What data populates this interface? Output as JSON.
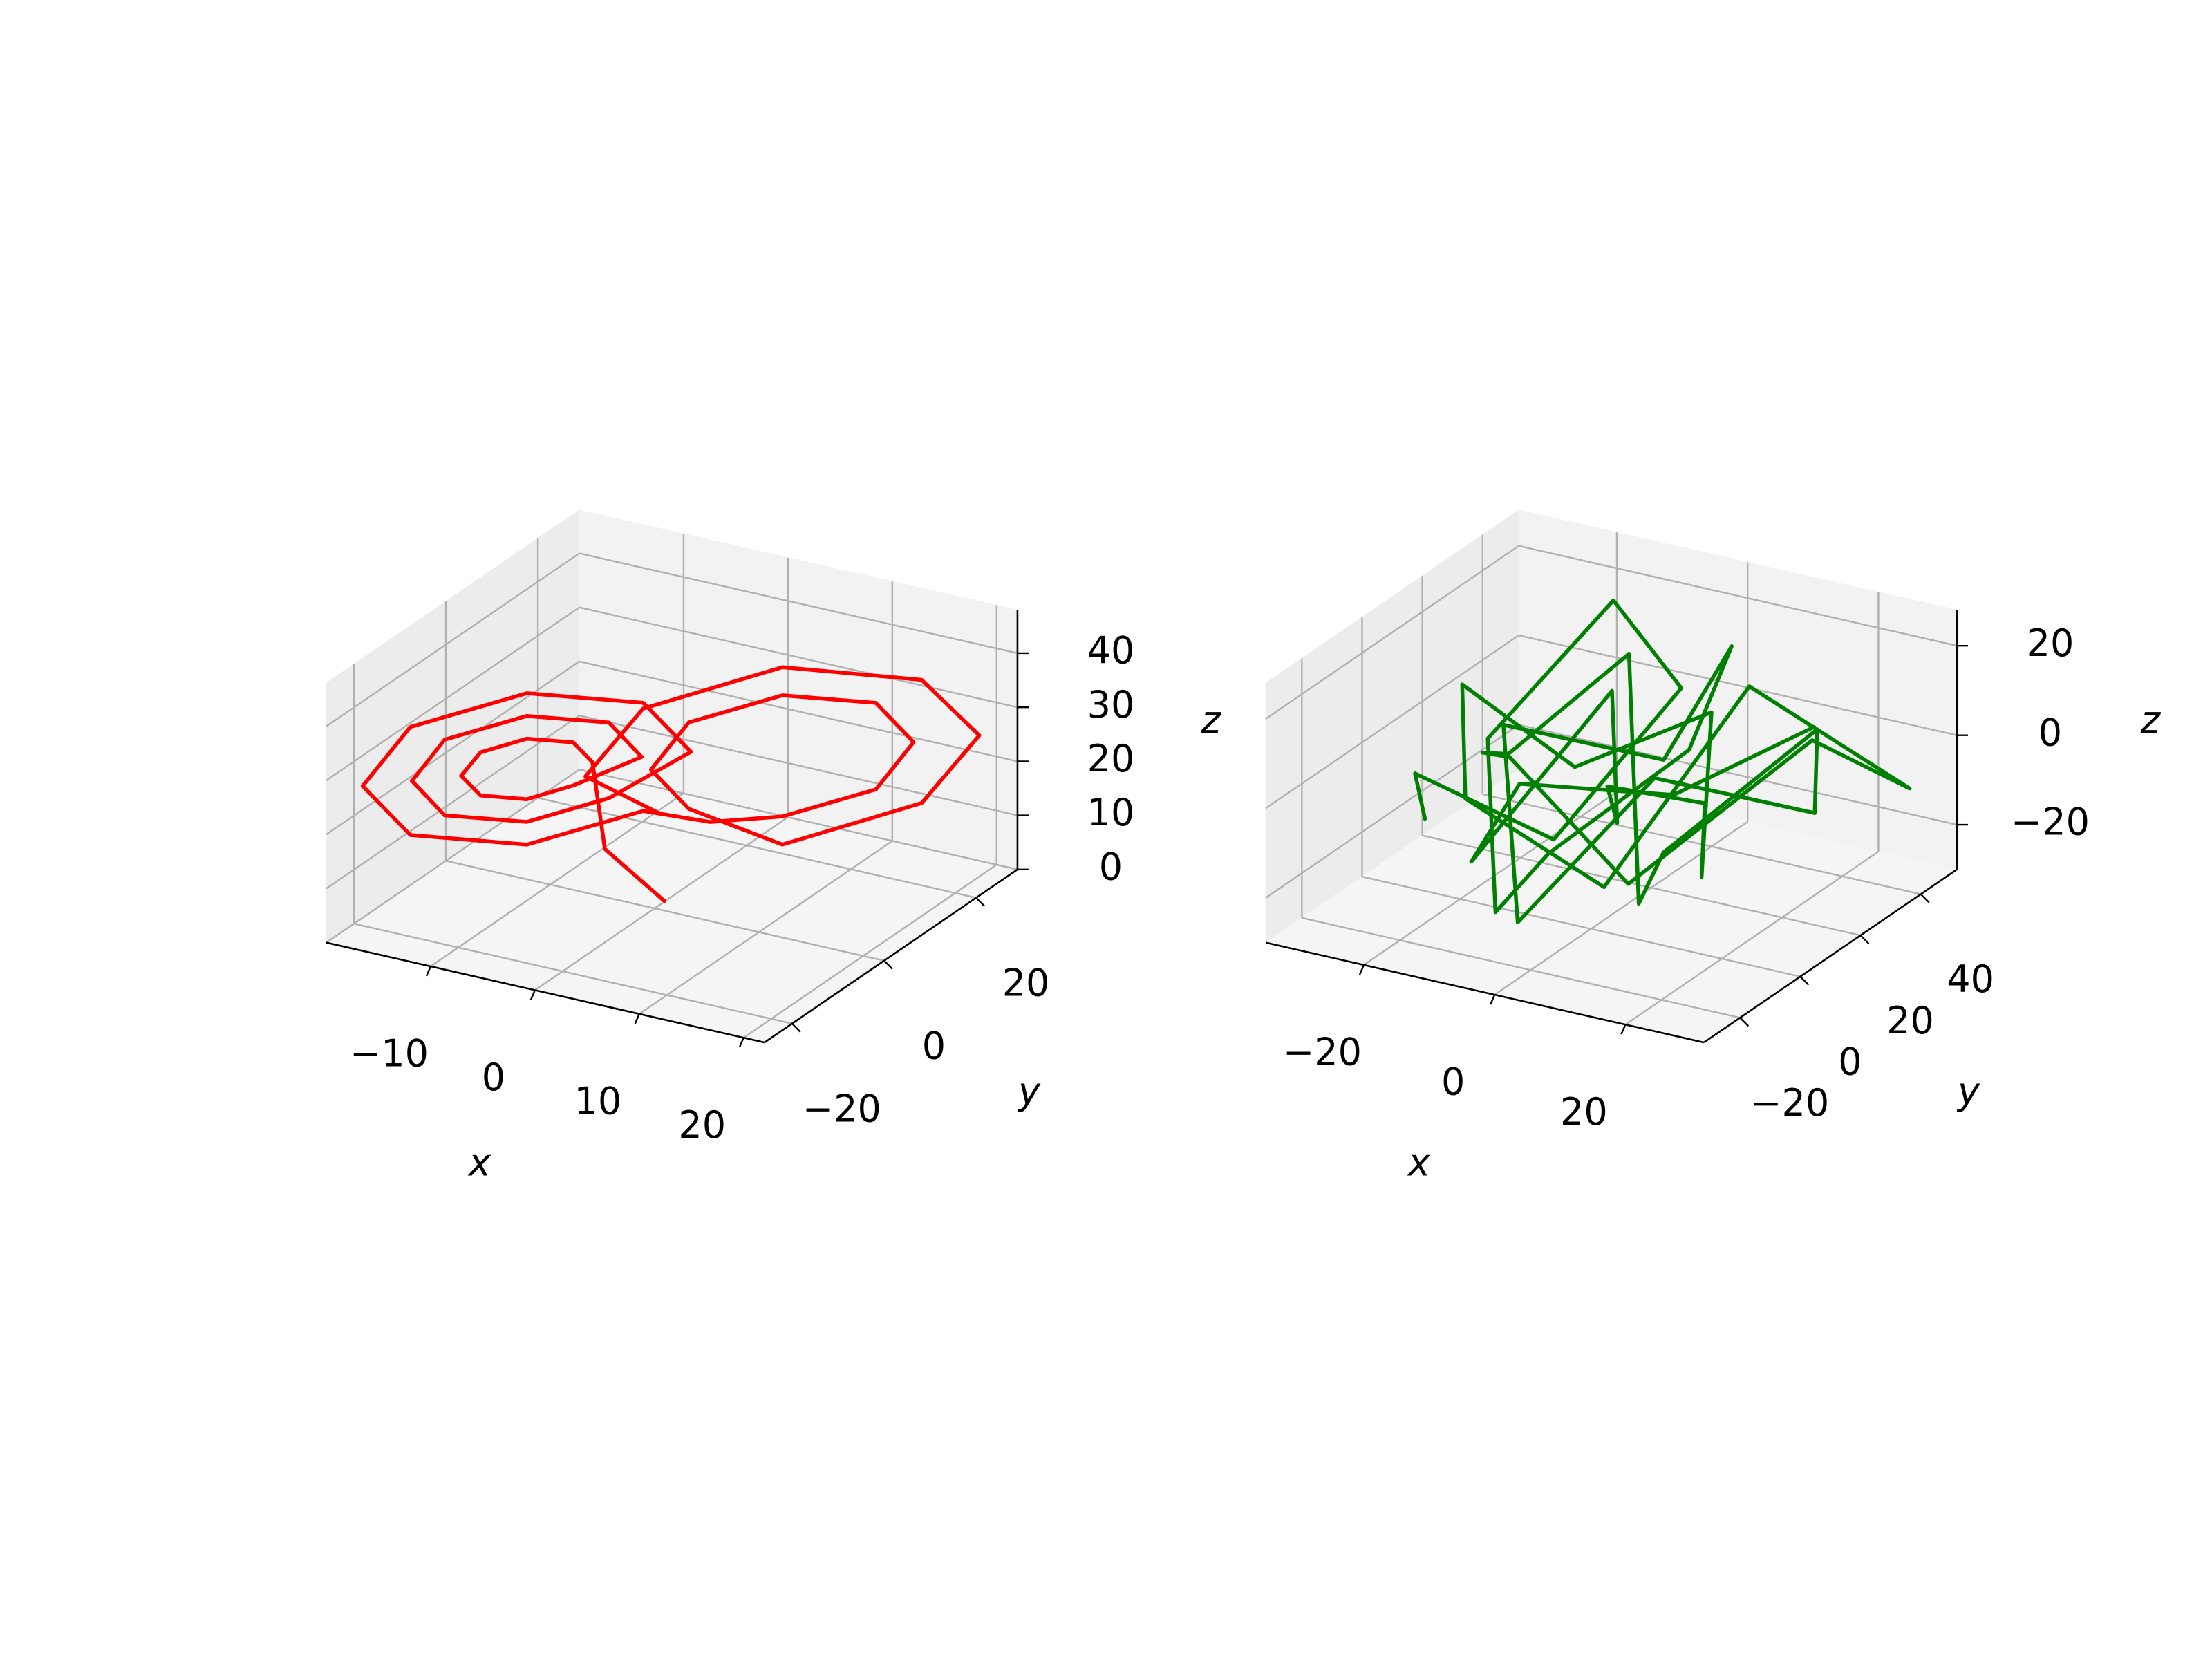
{
  "chart_data": [
    {
      "type": "line3d",
      "color": "#ff0000",
      "xlabel": "x",
      "ylabel": "y",
      "zlabel": "z",
      "xlim": [
        -20,
        22
      ],
      "ylim": [
        -26,
        29
      ],
      "zlim": [
        0,
        48
      ],
      "xticks": [
        {
          "value": -10,
          "label": "−10"
        },
        0,
        10,
        20
      ],
      "yticks": [
        {
          "value": -20,
          "label": "−20"
        },
        0,
        20
      ],
      "zticks": [
        0,
        10,
        20,
        30,
        40
      ],
      "grid": true,
      "x": [
        0.5,
        -3,
        -4.5,
        -5.7,
        -8.5,
        -11.3,
        -12.5,
        -11.3,
        -8.5,
        -5.7,
        -1.5,
        -3.5,
        -8.5,
        -13.5,
        -15.5,
        -13.5,
        -8.5,
        -3.5,
        1.5,
        -1.4,
        -8.5,
        -15.6,
        -18.5,
        -15.6,
        -8.5,
        -1.4,
        4,
        8.5,
        14.2,
        16.5,
        14.2,
        8.5,
        2.8,
        0.5,
        2.8,
        8.5,
        17,
        20.5,
        17,
        8.5,
        0,
        -3.5,
        2
      ],
      "y": [
        1,
        -4,
        -3.3,
        -4.8,
        -8.5,
        -12.2,
        -13.7,
        -12.2,
        -8.5,
        -4.8,
        0.6,
        -2.0,
        -8.5,
        -15,
        -17.6,
        -15,
        -8.5,
        -2.0,
        4.5,
        0.7,
        -8.5,
        -17.7,
        -21.5,
        -17.7,
        -8.5,
        0.7,
        3,
        8.5,
        15.9,
        18.9,
        15.9,
        8.5,
        1.1,
        -1.9,
        1.1,
        8.5,
        19.5,
        24.1,
        19.5,
        8.5,
        -2.5,
        -7.1,
        -3
      ],
      "z": [
        1,
        12,
        27,
        31,
        32.6,
        31,
        27,
        23,
        21.4,
        23,
        27,
        34,
        36.8,
        34,
        27,
        20,
        17.2,
        20,
        27,
        37,
        41,
        37,
        27,
        17,
        13,
        17,
        16,
        15.8,
        19,
        27,
        35,
        38.2,
        35,
        27,
        19,
        10.6,
        15.6,
        27,
        38.4,
        43.4,
        38.4,
        27,
        20
      ]
    },
    {
      "type": "line3d",
      "color": "#008000",
      "xlabel": "x",
      "ylabel": "y",
      "zlabel": "z",
      "xlim": [
        -35,
        32
      ],
      "ylim": [
        -32,
        52
      ],
      "zlim": [
        -30,
        28
      ],
      "xticks": [
        {
          "value": -20,
          "label": "−20"
        },
        0,
        20
      ],
      "yticks": [
        {
          "value": -20,
          "label": "−20"
        },
        0,
        20,
        40
      ],
      "zticks": [
        {
          "value": -20,
          "label": "−20"
        },
        0,
        20
      ],
      "grid": true,
      "x": [
        -30,
        -20,
        -8,
        0,
        -15,
        -25,
        -10,
        5,
        15,
        10,
        -5,
        -18,
        -2,
        12,
        25,
        30,
        18,
        5,
        -8,
        -20,
        -12,
        0,
        8,
        20,
        28,
        15,
        2,
        -10,
        -22,
        -14,
        0,
        10,
        22,
        14,
        4,
        -6,
        -16,
        -4,
        8,
        18
      ],
      "y": [
        10,
        -15,
        5,
        30,
        40,
        20,
        -10,
        -25,
        0,
        25,
        35,
        10,
        -20,
        -5,
        20,
        10,
        -15,
        5,
        30,
        15,
        -10,
        -28,
        -5,
        30,
        45,
        20,
        0,
        -20,
        5,
        25,
        40,
        15,
        -10,
        -25,
        0,
        20,
        -5,
        -15,
        10,
        35
      ],
      "z": [
        -20,
        5,
        -15,
        10,
        20,
        -5,
        -25,
        0,
        15,
        25,
        -10,
        5,
        -20,
        10,
        -5,
        20,
        0,
        -25,
        15,
        -5,
        10,
        22,
        -15,
        5,
        -10,
        20,
        -20,
        5,
        15,
        -10,
        0,
        -22,
        10,
        18,
        -5,
        12,
        -18,
        8,
        -2,
        5
      ]
    }
  ]
}
